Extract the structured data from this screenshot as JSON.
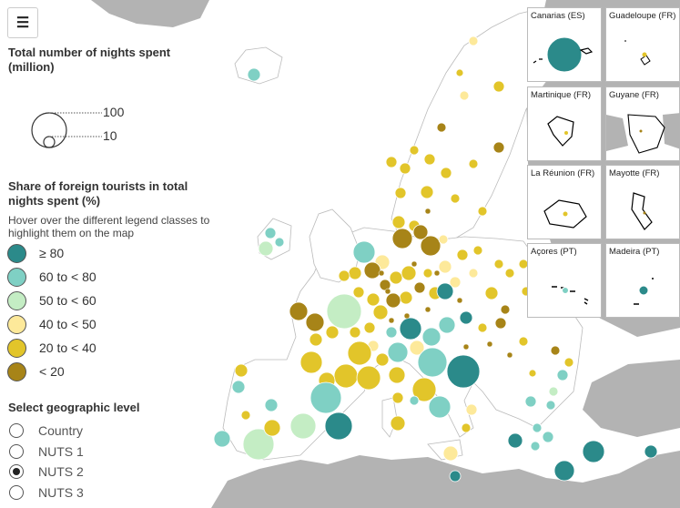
{
  "colors": {
    "c80": "#2b8a8a",
    "c60": "#7fd0c4",
    "c50": "#c4edc4",
    "c40": "#fde99a",
    "c20": "#e2c52a",
    "c0": "#a78418",
    "land": "#ffffff",
    "outside": "#b3b3b3",
    "sea": "#ffffff"
  },
  "menu": {
    "icon": "hamburger-icon",
    "glyph": "☰"
  },
  "size_legend": {
    "title": "Total number of nights spent (million)",
    "large_label": "100",
    "small_label": "10"
  },
  "share_legend": {
    "title": "Share of foreign tourists in total nights spent (%)",
    "hint": "Hover over the different legend classes to highlight them on the map",
    "classes": [
      {
        "label": "≥ 80",
        "color": "#2b8a8a"
      },
      {
        "label": "60 to < 80",
        "color": "#7fd0c4"
      },
      {
        "label": "50 to < 60",
        "color": "#c4edc4"
      },
      {
        "label": "40 to < 50",
        "color": "#fde99a"
      },
      {
        "label": "20 to < 40",
        "color": "#e2c52a"
      },
      {
        "label": "< 20",
        "color": "#a78418"
      }
    ]
  },
  "geo_level": {
    "title": "Select geographic level",
    "options": [
      "Country",
      "NUTS 1",
      "NUTS 2",
      "NUTS 3"
    ],
    "selected": "NUTS 2"
  },
  "insets": [
    {
      "name": "Canarias (ES)"
    },
    {
      "name": "Guadeloupe (FR)"
    },
    {
      "name": "Martinique (FR)"
    },
    {
      "name": "Guyane (FR)"
    },
    {
      "name": "La Réunion (FR)"
    },
    {
      "name": "Mayotte (FR)"
    },
    {
      "name": "Açores (PT)"
    },
    {
      "name": "Madeira (PT)"
    }
  ]
}
